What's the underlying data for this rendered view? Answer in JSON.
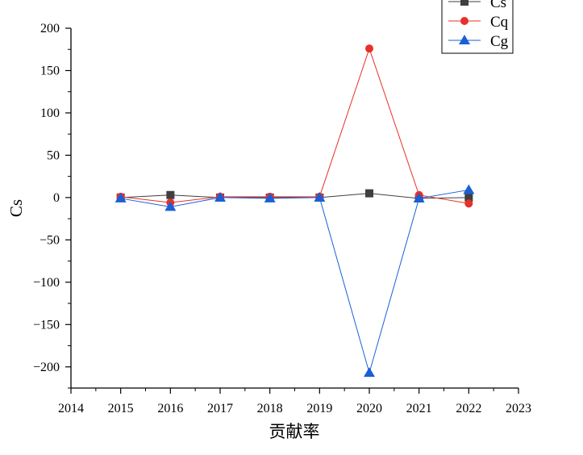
{
  "chart_data": {
    "type": "line",
    "xlabel": "贡献率",
    "ylabel": "Cs",
    "xlim": [
      2014,
      2023
    ],
    "ylim": [
      -225,
      200
    ],
    "x_ticks": [
      "2014",
      "2015",
      "2016",
      "2017",
      "2018",
      "2019",
      "2020",
      "2021",
      "2022",
      "2023"
    ],
    "y_ticks": [
      "200",
      "150",
      "100",
      "50",
      "0",
      "−50",
      "−100",
      "−150",
      "−200"
    ],
    "y_tick_values": [
      200,
      150,
      100,
      50,
      0,
      -50,
      -100,
      -150,
      -200
    ],
    "x": [
      2015,
      2016,
      2017,
      2018,
      2019,
      2020,
      2021,
      2022
    ],
    "grid": false,
    "legend_position": "top-right",
    "series": [
      {
        "name": "Cs",
        "color": "#3f3f3f",
        "marker": "square",
        "values": [
          0,
          3,
          0,
          0,
          0,
          5,
          -1,
          0
        ]
      },
      {
        "name": "Cq",
        "color": "#e8302a",
        "marker": "circle",
        "values": [
          1,
          -6,
          1,
          1,
          1,
          176,
          3,
          -7
        ]
      },
      {
        "name": "Cg",
        "color": "#1a5fd6",
        "marker": "triangle",
        "values": [
          -1,
          -11,
          0,
          -1,
          0,
          -207,
          -1,
          9
        ]
      }
    ]
  }
}
